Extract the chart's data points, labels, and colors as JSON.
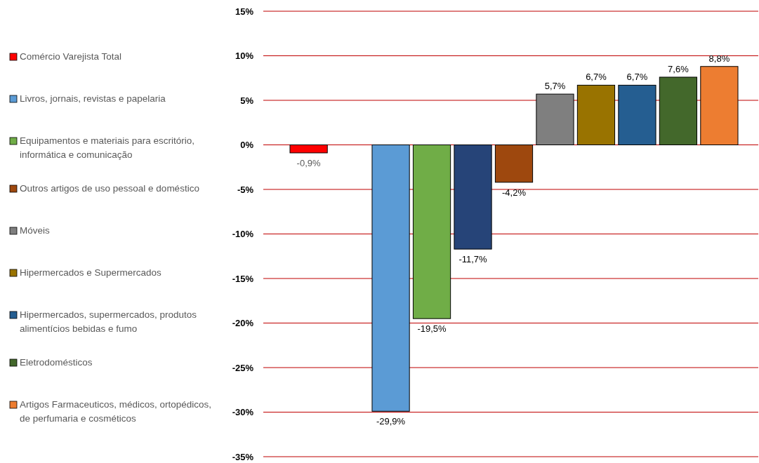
{
  "chart_data": {
    "type": "bar",
    "categories": [
      null,
      null,
      null,
      null,
      null,
      null,
      null,
      null,
      null,
      null,
      null
    ],
    "series": [
      {
        "name": "Comércio Varejista Total",
        "color": "#ff0000",
        "values": [
          -0.9,
          null,
          null,
          null,
          null,
          null,
          null,
          null,
          null,
          null,
          null
        ],
        "value_labels": [
          "-0,9%",
          null,
          null,
          null,
          null,
          null,
          null,
          null,
          null,
          null,
          null
        ]
      },
      {
        "name": "Livros, jornais, revistas e papelaria",
        "color": "#5b9bd5",
        "values": [
          null,
          null,
          -29.9,
          null,
          null,
          null,
          null,
          null,
          null,
          null,
          null
        ],
        "value_labels": [
          null,
          null,
          "-29,9%",
          null,
          null,
          null,
          null,
          null,
          null,
          null,
          null
        ]
      },
      {
        "name": "Equipamentos e materiais para escritório, informática e comunicação",
        "color": "#70ad47",
        "values": [
          null,
          null,
          null,
          -19.5,
          null,
          null,
          null,
          null,
          null,
          null,
          null
        ],
        "value_labels": [
          null,
          null,
          null,
          "-19,5%",
          null,
          null,
          null,
          null,
          null,
          null,
          null
        ]
      },
      {
        "color": "#264478",
        "values": [
          null,
          null,
          null,
          null,
          -11.7,
          null,
          null,
          null,
          null,
          null,
          null
        ],
        "value_labels": [
          null,
          null,
          null,
          null,
          "-11,7%",
          null,
          null,
          null,
          null,
          null,
          null
        ]
      },
      {
        "name": "Outros artigos de uso pessoal e doméstico",
        "color": "#9e480e",
        "values": [
          null,
          null,
          null,
          null,
          null,
          -4.2,
          null,
          null,
          null,
          null,
          null
        ],
        "value_labels": [
          null,
          null,
          null,
          null,
          null,
          "-4,2%",
          null,
          null,
          null,
          null,
          null
        ]
      },
      {
        "name": "Móveis",
        "color": "#7f7f7f",
        "values": [
          null,
          null,
          null,
          null,
          null,
          null,
          5.7,
          null,
          null,
          null,
          null
        ],
        "value_labels": [
          null,
          null,
          null,
          null,
          null,
          null,
          "5,7%",
          null,
          null,
          null,
          null
        ]
      },
      {
        "name": "Hipermercados e Supermercados",
        "color": "#997300",
        "values": [
          null,
          null,
          null,
          null,
          null,
          null,
          null,
          6.7,
          null,
          null,
          null
        ],
        "value_labels": [
          null,
          null,
          null,
          null,
          null,
          null,
          null,
          "6,7%",
          null,
          null,
          null
        ]
      },
      {
        "name": "Hipermercados, supermercados, produtos alimentícios bebidas e fumo",
        "color": "#255e91",
        "values": [
          null,
          null,
          null,
          null,
          null,
          null,
          null,
          null,
          6.7,
          null,
          null
        ],
        "value_labels": [
          null,
          null,
          null,
          null,
          null,
          null,
          null,
          null,
          "6,7%",
          null,
          null
        ]
      },
      {
        "name": "Eletrodomésticos",
        "color": "#43682b",
        "values": [
          null,
          null,
          null,
          null,
          null,
          null,
          null,
          null,
          null,
          7.6,
          null
        ],
        "value_labels": [
          null,
          null,
          null,
          null,
          null,
          null,
          null,
          null,
          null,
          "7,6%",
          null
        ]
      },
      {
        "name": "Artigos Farmaceuticos, médicos, ortopédicos, de perfumaria e cosméticos",
        "color": "#ed7d31",
        "values": [
          null,
          null,
          null,
          null,
          null,
          null,
          null,
          null,
          null,
          null,
          8.8
        ],
        "value_labels": [
          null,
          null,
          null,
          null,
          null,
          null,
          null,
          null,
          null,
          null,
          "8,8%"
        ]
      }
    ],
    "ylim": [
      -35,
      15
    ],
    "yticks": [
      {
        "value": -35,
        "label": "-35%"
      },
      {
        "value": -30,
        "label": "-30%"
      },
      {
        "value": -25,
        "label": "-25%"
      },
      {
        "value": -20,
        "label": "-20%"
      },
      {
        "value": -15,
        "label": "-15%"
      },
      {
        "value": -10,
        "label": "-10%"
      },
      {
        "value": -5,
        "label": "-5%"
      },
      {
        "value": 0,
        "label": "0%"
      },
      {
        "value": 5,
        "label": "5%"
      },
      {
        "value": 10,
        "label": "10%"
      },
      {
        "value": 15,
        "label": "15%"
      }
    ],
    "grid": "y",
    "legend": "left"
  }
}
